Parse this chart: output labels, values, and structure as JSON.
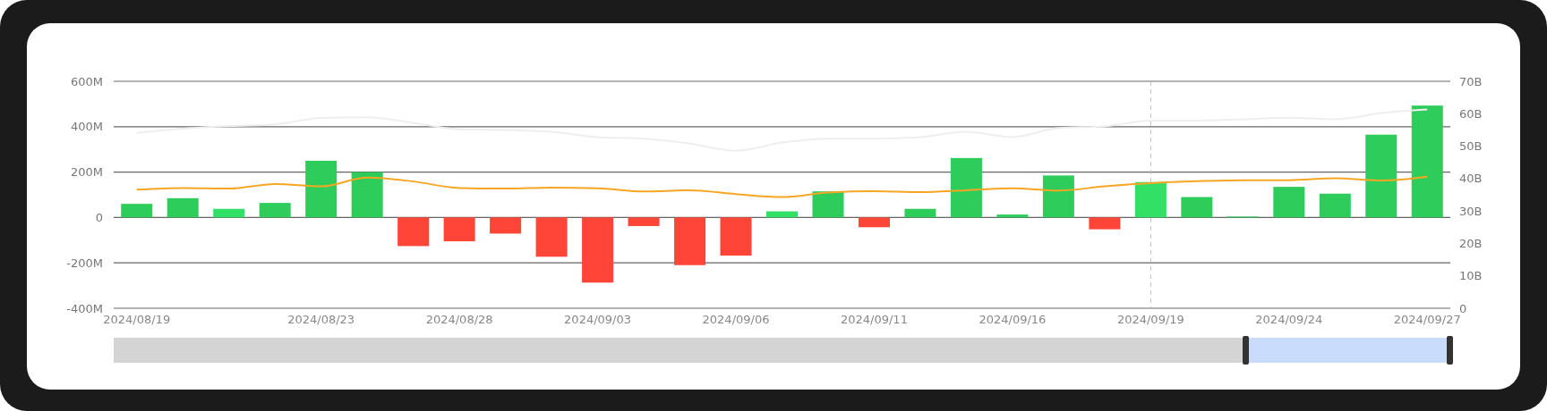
{
  "chart_data": {
    "type": "bar",
    "categories": [
      "2024/08/19",
      null,
      null,
      null,
      "2024/08/23",
      null,
      null,
      "2024/08/28",
      null,
      null,
      "2024/09/03",
      null,
      null,
      "2024/09/06",
      null,
      null,
      "2024/09/11",
      null,
      null,
      "2024/09/16",
      null,
      null,
      "2024/09/19",
      null,
      null,
      "2024/09/24",
      null,
      null,
      "2024/09/27"
    ],
    "series": [
      {
        "values": [
          60,
          85,
          38,
          64,
          250,
          200,
          -126,
          -105,
          -71,
          -173,
          -287,
          -38,
          -210,
          -168,
          27,
          115,
          -43,
          38,
          262,
          13,
          185,
          -52,
          156,
          90,
          4,
          135,
          105,
          365,
          493
        ],
        "colors": [
          "#2ecc5a",
          "#2ecc5a",
          "#33e066",
          "#2ecc5a",
          "#2ecc5a",
          "#2ecc5a",
          "#ff4538",
          "#ff4538",
          "#ff4538",
          "#ff4538",
          "#ff4538",
          "#ff4538",
          "#ff4538",
          "#ff4538",
          "#33e066",
          "#2ecc5a",
          "#ff4538",
          "#2ecc5a",
          "#2ecc5a",
          "#2ecc5a",
          "#2ecc5a",
          "#ff4538",
          "#33e066",
          "#2ecc5a",
          "#2ecc5a",
          "#2ecc5a",
          "#2ecc5a",
          "#2ecc5a",
          "#2ecc5a"
        ]
      },
      {
        "type": "line",
        "axis": "y2",
        "color": "#f5a623",
        "values": [
          36.6,
          37.1,
          36.9,
          38.3,
          37.6,
          40.3,
          39.1,
          37.1,
          36.9,
          37.2,
          37.0,
          36.0,
          36.4,
          35.2,
          34.3,
          35.7,
          36.1,
          35.8,
          36.4,
          37.0,
          36.3,
          37.6,
          38.6,
          39.2,
          39.5,
          39.5,
          40.1,
          39.4,
          40.6
        ]
      },
      {
        "type": "line",
        "axis": "y2",
        "color": "#eeeeee",
        "values": [
          54.1,
          55.4,
          56.2,
          56.7,
          58.7,
          58.9,
          57.2,
          55.2,
          55.0,
          54.4,
          52.8,
          52.3,
          50.8,
          48.6,
          51.1,
          52.3,
          52.3,
          52.8,
          54.4,
          52.8,
          55.6,
          56.1,
          57.9,
          57.9,
          58.3,
          58.8,
          58.3,
          60.2,
          61.3
        ]
      }
    ],
    "ylim": [
      -400,
      600
    ],
    "yticks": [
      {
        "value": -400,
        "label": "-400M"
      },
      {
        "value": -200,
        "label": "-200M"
      },
      0,
      {
        "value": 200,
        "label": "200M"
      },
      {
        "value": 400,
        "label": "400M"
      },
      {
        "value": 600,
        "label": "600M"
      }
    ],
    "y2lim": [
      0,
      70
    ],
    "y2ticks": [
      0,
      {
        "value": 10,
        "label": "10B"
      },
      {
        "value": 20,
        "label": "20B"
      },
      {
        "value": 30,
        "label": "30B"
      },
      {
        "value": 40,
        "label": "40B"
      },
      {
        "value": 50,
        "label": "50B"
      },
      {
        "value": 60,
        "label": "60B"
      },
      {
        "value": 70,
        "label": "70B"
      }
    ],
    "grid": "y",
    "ref_lines": [
      {
        "axis": "x",
        "value": "2024/09/19",
        "color": "#b8c0d0",
        "line_style": "dashed"
      }
    ]
  }
}
